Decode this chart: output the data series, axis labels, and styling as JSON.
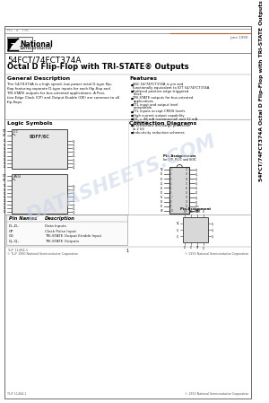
{
  "page_bg": "#ffffff",
  "border_color": "#888888",
  "title_part": "54FCT/74FCT374A",
  "title_desc": "Octal D Flip-Flop with TRI-STATE® Outputs",
  "date_text": "June 1990",
  "general_title": "General Description",
  "general_lines": [
    "The 54/74374A is a high speed, low power octal D-type flip-",
    "flop featuring separate D-type inputs for each flip-flop and",
    "TRI-STATE outputs for bus-oriented applications. A Posi-",
    "tive-Edge Clock (CP) and Output Enable (OE) are common to all",
    "flip-flops."
  ],
  "features_title": "Features",
  "features_list": [
    "ASC 54/74FCT374A is pin and functionally equivalent to IDT 54/74FCT374A",
    "Buffered positive-edge triggered clock",
    "TRI-STATE outputs for bus-oriented applications",
    "TTL input and output level compatible",
    "TTL inputs accept CMOS levels",
    "High current output capability",
    "IOL = 48 mA (commercial) and 32 mA (military)",
    "Electrostatic discharge protection ≥ 2 kV",
    "Inductivity reduction schemes"
  ],
  "logic_title": "Logic Symbols",
  "connection_title": "Connection Diagrams",
  "pin_names_header": "Pin Names",
  "pin_desc_header": "Description",
  "pin_names": [
    "D₀–D₇",
    "CP",
    "OE",
    "Q₀–Q₇"
  ],
  "pin_descs": [
    "Data Inputs",
    "Clock Pulse Input",
    "TRI-STATE Output Enable Input",
    "TRI-STATE Outputs"
  ],
  "side_text": "54FCT/74FCT374A Octal D Flip-Flop with TRI-STATE Outputs",
  "side_bg": "#ffffff",
  "watermark_text": "DATASHEETS.COM",
  "watermark_color": "#c8d4e8",
  "footer_code": "TL/F 11494-1",
  "footer_page": "1",
  "footer_copy": "© TL/F 1990 National Semiconductor Corporation",
  "footer_right": "© 1990 National Semiconductor Corporation",
  "header_small": "FIC   4   776",
  "ic_fill": "#e8e8e8",
  "ic_edge": "#444444",
  "dip_fill": "#d8d8d8",
  "lcc_fill": "#d8d8d8"
}
